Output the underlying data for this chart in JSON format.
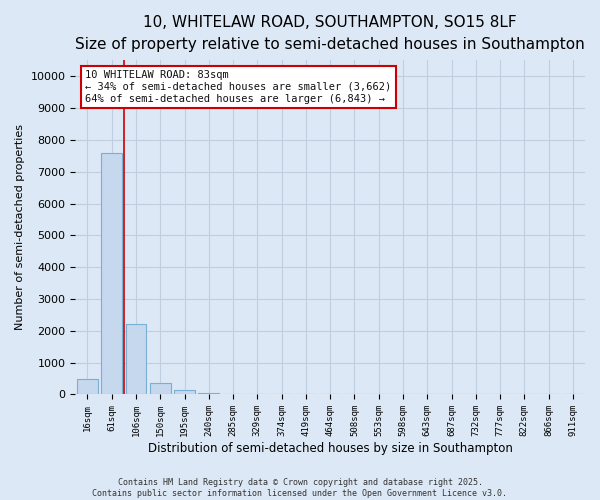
{
  "title": "10, WHITELAW ROAD, SOUTHAMPTON, SO15 8LF",
  "subtitle": "Size of property relative to semi-detached houses in Southampton",
  "xlabel": "Distribution of semi-detached houses by size in Southampton",
  "ylabel": "Number of semi-detached properties",
  "categories": [
    "16sqm",
    "61sqm",
    "106sqm",
    "150sqm",
    "195sqm",
    "240sqm",
    "285sqm",
    "329sqm",
    "374sqm",
    "419sqm",
    "464sqm",
    "508sqm",
    "553sqm",
    "598sqm",
    "643sqm",
    "687sqm",
    "732sqm",
    "777sqm",
    "822sqm",
    "866sqm",
    "911sqm"
  ],
  "values": [
    480,
    7600,
    2200,
    370,
    130,
    60,
    0,
    0,
    0,
    0,
    0,
    0,
    0,
    0,
    0,
    0,
    0,
    0,
    0,
    0,
    0
  ],
  "bar_color": "#c5d8ed",
  "bar_edge_color": "#7aafd4",
  "red_line_x": 1.5,
  "annotation_title": "10 WHITELAW ROAD: 83sqm",
  "annotation_line1": "← 34% of semi-detached houses are smaller (3,662)",
  "annotation_line2": "64% of semi-detached houses are larger (6,843) →",
  "ylim": [
    0,
    10500
  ],
  "yticks": [
    0,
    1000,
    2000,
    3000,
    4000,
    5000,
    6000,
    7000,
    8000,
    9000,
    10000
  ],
  "footer": "Contains HM Land Registry data © Crown copyright and database right 2025.\nContains public sector information licensed under the Open Government Licence v3.0.",
  "bg_color": "#dce8f5",
  "plot_bg_color": "#dce8f5",
  "grid_color": "#c0cfe0",
  "title_fontsize": 11,
  "subtitle_fontsize": 9,
  "annotation_box_facecolor": "#ffffff",
  "annotation_box_edgecolor": "#cc0000"
}
